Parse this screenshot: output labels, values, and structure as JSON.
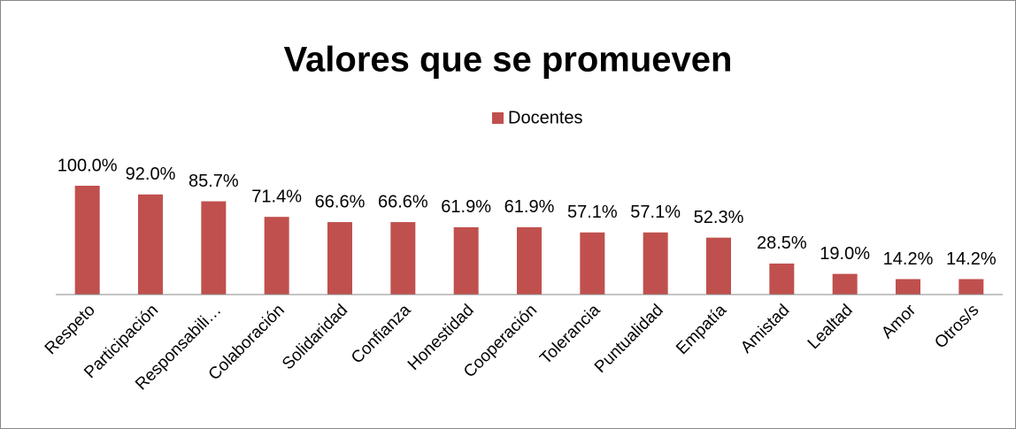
{
  "chart_data": {
    "type": "bar",
    "title": "Valores que se promueven",
    "categories": [
      "Respeto",
      "Participación",
      "Responsabili…",
      "Colaboración",
      "Solidaridad",
      "Confianza",
      "Honestidad",
      "Cooperación",
      "Tolerancia",
      "Puntualidad",
      "Empatía",
      "Amistad",
      "Lealtad",
      "Amor",
      "Otros/s"
    ],
    "series": [
      {
        "name": "Docentes",
        "color": "#c0504d",
        "values": [
          100.0,
          92.0,
          85.7,
          71.4,
          66.6,
          66.6,
          61.9,
          61.9,
          57.1,
          57.1,
          52.3,
          28.5,
          19.0,
          14.2,
          14.2
        ],
        "value_labels": [
          "100.0%",
          "92.0%",
          "85.7%",
          "71.4%",
          "66.6%",
          "66.6%",
          "61.9%",
          "61.9%",
          "57.1%",
          "57.1%",
          "52.3%",
          "28.5%",
          "19.0%",
          "14.2%",
          "14.2%"
        ]
      }
    ],
    "ylim": [
      0,
      100
    ],
    "legend": "top"
  }
}
